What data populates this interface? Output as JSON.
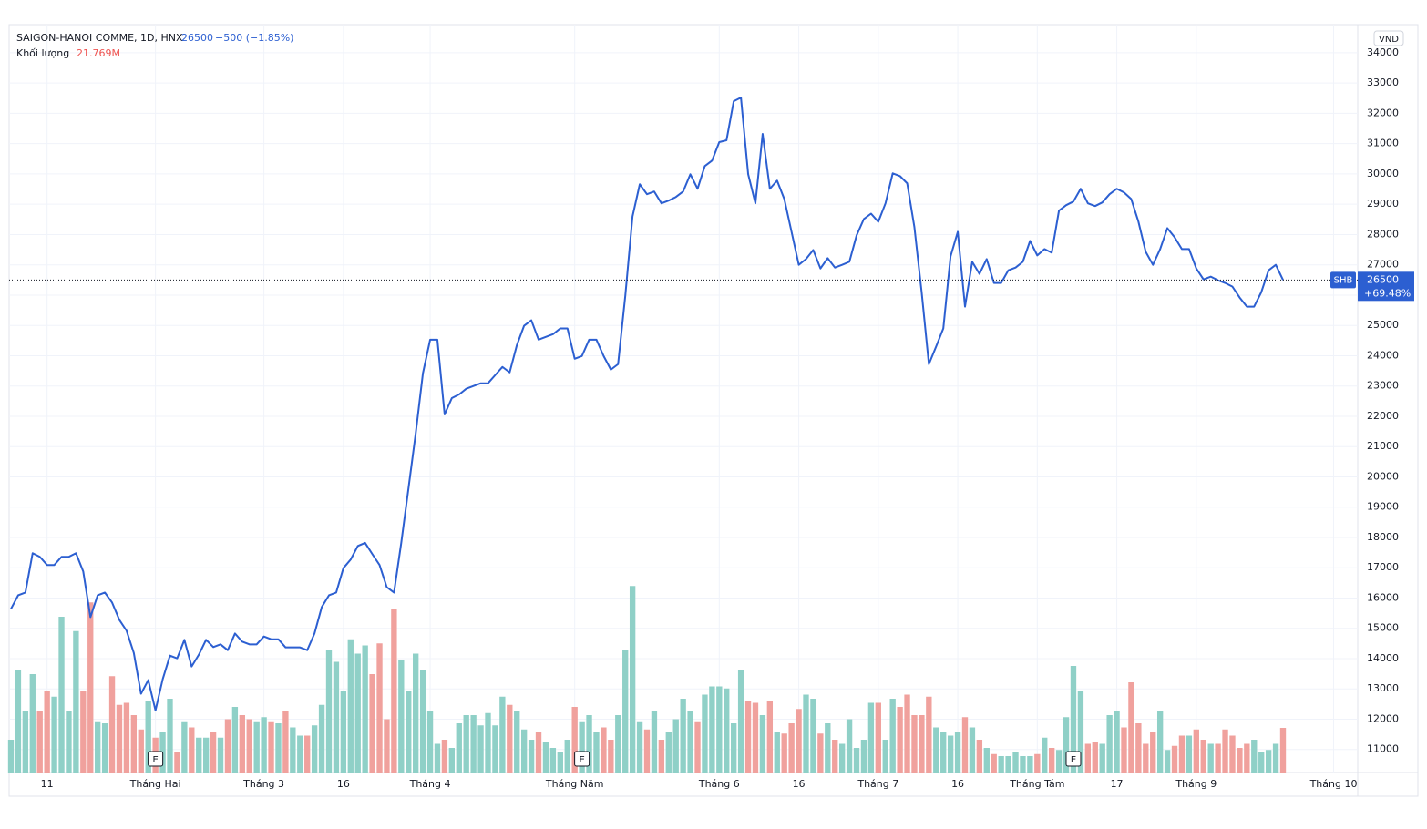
{
  "chart_data": {
    "type": "line",
    "symbol": "SAIGON-HANOI COMME, 1D, HNX",
    "change": "−500 (−1.85%)",
    "change_since_start": "+69.48%",
    "currency": "VND",
    "grid": true,
    "ylim": [
      10240,
      34930
    ],
    "yticks": [
      11000,
      12000,
      13000,
      14000,
      15000,
      16000,
      17000,
      18000,
      19000,
      20000,
      21000,
      22000,
      23000,
      24000,
      25000,
      26000,
      27000,
      28000,
      29000,
      30000,
      31000,
      32000,
      33000,
      34000
    ],
    "xticks": [
      {
        "value": 5,
        "label": "11"
      },
      {
        "value": 20,
        "label": "Tháng Hai"
      },
      {
        "value": 35,
        "label": "Tháng 3"
      },
      {
        "value": 46,
        "label": "16"
      },
      {
        "value": 58,
        "label": "Tháng 4"
      },
      {
        "value": 78,
        "label": "Tháng Năm"
      },
      {
        "value": 98,
        "label": "Tháng 6"
      },
      {
        "value": 109,
        "label": "16"
      },
      {
        "value": 120,
        "label": "Tháng 7"
      },
      {
        "value": 131,
        "label": "16"
      },
      {
        "value": 142,
        "label": "Tháng Tám"
      },
      {
        "value": 153,
        "label": "17"
      },
      {
        "value": 164,
        "label": "Tháng 9"
      },
      {
        "value": 183,
        "label": "Tháng 10"
      }
    ],
    "events": [
      {
        "index": 20,
        "label": "E"
      },
      {
        "index": 79,
        "label": "E"
      },
      {
        "index": 147,
        "label": "E"
      }
    ],
    "series": [
      {
        "name": "SHB",
        "color": "#2c5fd1",
        "values": [
          15640,
          16090,
          16180,
          17480,
          17360,
          17090,
          17090,
          17360,
          17360,
          17480,
          16880,
          15370,
          16090,
          16180,
          15850,
          15280,
          14920,
          14190,
          12840,
          13290,
          12290,
          13320,
          14100,
          14010,
          14620,
          13740,
          14130,
          14620,
          14380,
          14470,
          14280,
          14830,
          14560,
          14470,
          14470,
          14730,
          14640,
          14640,
          14370,
          14370,
          14370,
          14280,
          14830,
          15700,
          16090,
          16180,
          16990,
          17270,
          17720,
          17820,
          17450,
          17090,
          16360,
          16180,
          17820,
          19620,
          21430,
          23420,
          24530,
          24530,
          22060,
          22600,
          22720,
          22910,
          23000,
          23090,
          23090,
          23360,
          23630,
          23450,
          24350,
          24990,
          25170,
          24530,
          24620,
          24710,
          24900,
          24900,
          23900,
          23990,
          24530,
          24530,
          23990,
          23540,
          23720,
          25980,
          28600,
          29660,
          29330,
          29420,
          29030,
          29120,
          29240,
          29420,
          29990,
          29510,
          30260,
          30440,
          31050,
          31110,
          32400,
          32520,
          29990,
          29030,
          31320,
          29510,
          29780,
          29170,
          28090,
          27000,
          27190,
          27490,
          26880,
          27220,
          26910,
          27000,
          27100,
          27970,
          28510,
          28690,
          28420,
          29030,
          30020,
          29930,
          29690,
          28240,
          26100,
          23720,
          24300,
          24900,
          27280,
          28090,
          25620,
          27100,
          26700,
          27190,
          26400,
          26400,
          26820,
          26910,
          27100,
          27790,
          27310,
          27520,
          27400,
          28790,
          28970,
          29090,
          29510,
          29030,
          28940,
          29060,
          29330,
          29510,
          29390,
          29170,
          28420,
          27430,
          27000,
          27520,
          28210,
          27910,
          27520,
          27520,
          26880,
          26520,
          26610,
          26490,
          26400,
          26280,
          25920,
          25620,
          25620,
          26100,
          26820,
          27000,
          26500
        ]
      },
      {
        "name": "Khối lượng",
        "type": "bar",
        "color": "#8fd0c7",
        "down_color": "#f0a19d",
        "last_value_label": "21.769M",
        "values": [
          16,
          50,
          30,
          48,
          30,
          40,
          37,
          76,
          30,
          69,
          40,
          83,
          25,
          24,
          47,
          33,
          34,
          28,
          21,
          35,
          17,
          20,
          36,
          10,
          25,
          22,
          17,
          17,
          20,
          17,
          26,
          32,
          28,
          26,
          25,
          27,
          25,
          24,
          30,
          22,
          18,
          18,
          23,
          33,
          60,
          54,
          40,
          65,
          58,
          62,
          48,
          63,
          26,
          80,
          55,
          40,
          58,
          50,
          30,
          14,
          16,
          12,
          24,
          28,
          28,
          23,
          29,
          23,
          37,
          33,
          30,
          21,
          16,
          20,
          15,
          12,
          10,
          16,
          32,
          25,
          28,
          20,
          22,
          16,
          28,
          60,
          91,
          25,
          21,
          30,
          16,
          20,
          26,
          36,
          30,
          25,
          38,
          42,
          42,
          41,
          24,
          50,
          35,
          34,
          28,
          35,
          20,
          19,
          24,
          31,
          38,
          36,
          19,
          24,
          16,
          14,
          26,
          12,
          16,
          34,
          34,
          16,
          36,
          32,
          38,
          28,
          28,
          37,
          22,
          20,
          18,
          20,
          27,
          22,
          16,
          12,
          9,
          8,
          8,
          10,
          8,
          8,
          9,
          17,
          12,
          11,
          27,
          52,
          40,
          14,
          15,
          14,
          28,
          30,
          22,
          44,
          24,
          14,
          20,
          30,
          11,
          13,
          18,
          18,
          21,
          16,
          14,
          14,
          21,
          18,
          12,
          14,
          16,
          10,
          11,
          14,
          21.769
        ]
      }
    ]
  }
}
